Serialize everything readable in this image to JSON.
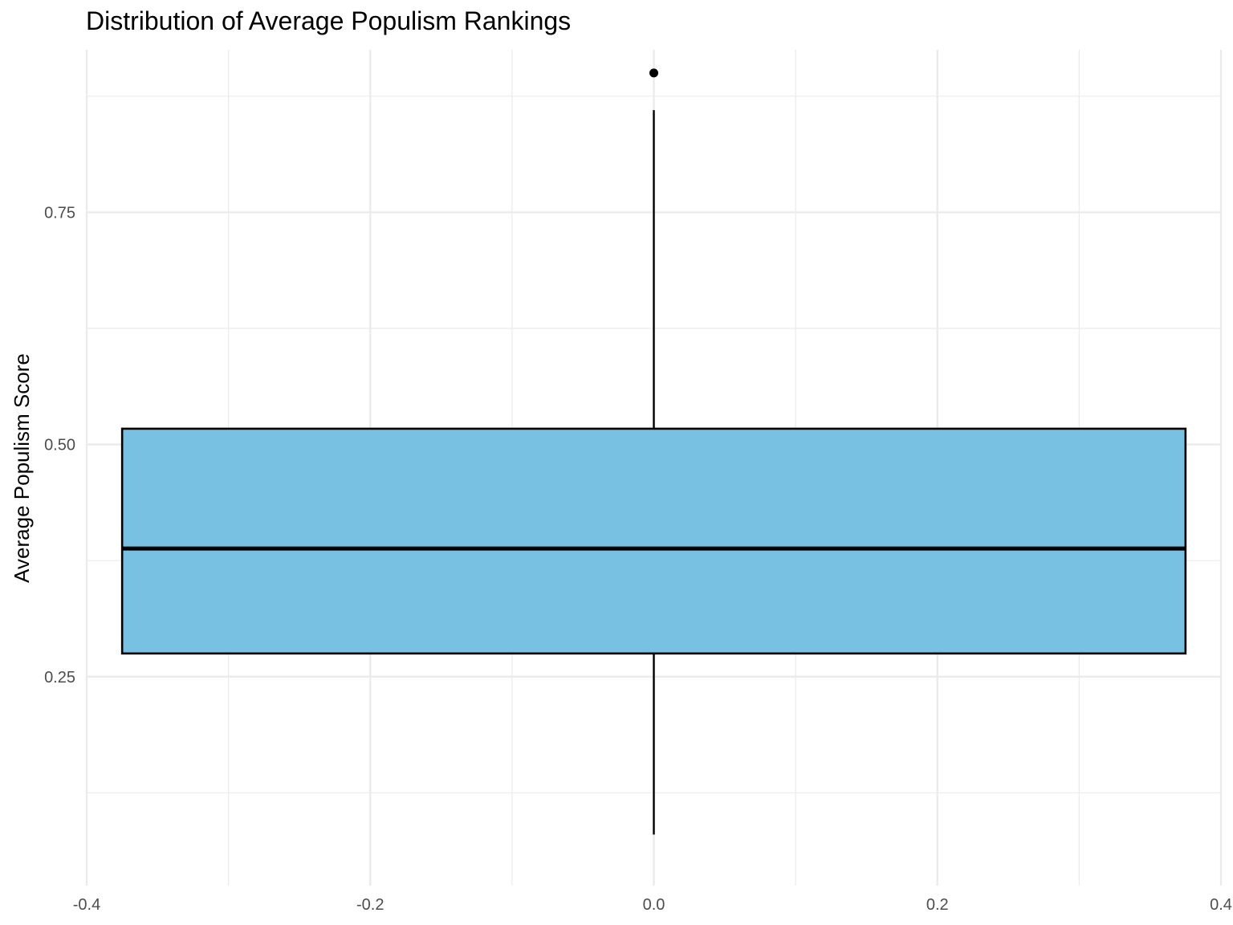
{
  "chart_data": {
    "type": "boxplot",
    "title": "Distribution of Average Populism Rankings",
    "xlabel": "",
    "ylabel": "Average Populism Score",
    "xlim": [
      -0.4,
      0.4
    ],
    "ylim": [
      0.025,
      0.925
    ],
    "x_ticks": [
      -0.4,
      -0.2,
      0.0,
      0.2,
      0.4
    ],
    "x_tick_labels": [
      "-0.4",
      "-0.2",
      "0.0",
      "0.2",
      "0.4"
    ],
    "y_ticks": [
      0.25,
      0.5,
      0.75
    ],
    "y_tick_labels": [
      "0.25",
      "0.50",
      "0.75"
    ],
    "box": {
      "x_center": 0.0,
      "width": 0.75,
      "whisker_low": 0.08,
      "q1": 0.275,
      "median": 0.388,
      "q3": 0.517,
      "whisker_high": 0.86,
      "outliers": [
        0.9
      ],
      "fill": "#79c1e3",
      "stroke": "#000000"
    },
    "grid": true,
    "legend": "none"
  }
}
